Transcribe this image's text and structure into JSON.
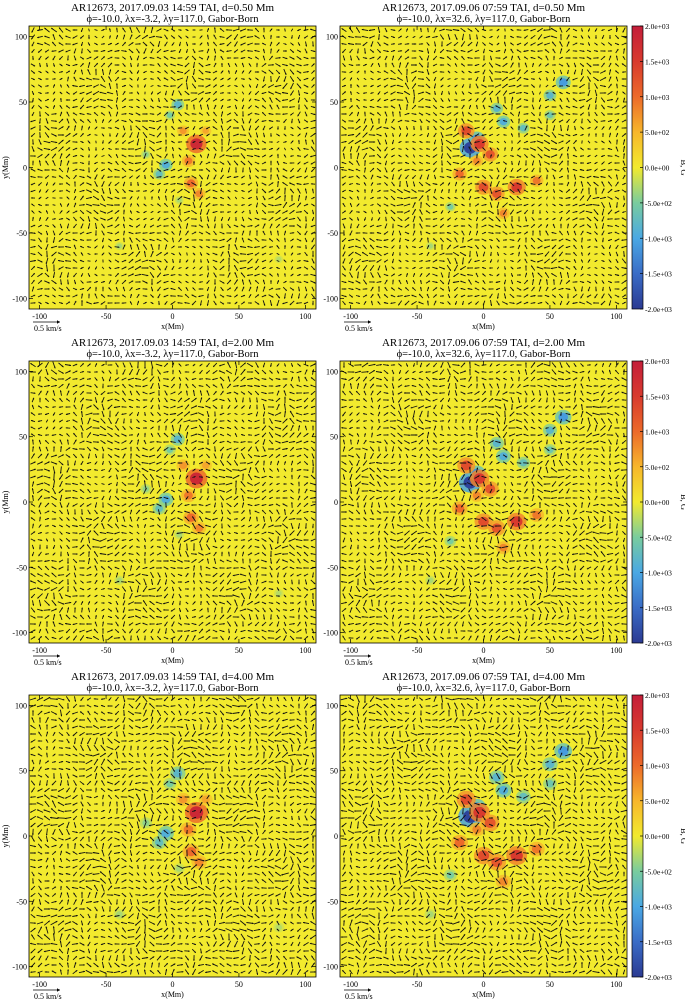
{
  "figure": {
    "columns": [
      {
        "date": "2017.09.03",
        "time": "14:59",
        "lambda_x": "-3.2"
      },
      {
        "date": "2017.09.06",
        "time": "07:59",
        "lambda_x": "32.6"
      }
    ],
    "rows": [
      {
        "depth": "0.50"
      },
      {
        "depth": "2.00"
      },
      {
        "depth": "4.00"
      }
    ]
  },
  "chart_data": [
    {
      "type": "heatmap",
      "title": "AR12673, 2017.09.03 14:59 TAI, d=0.50 Mm",
      "subtitle": "ϕ=-10.0, λx=-3.2, λy=117.0, Gabor-Born",
      "xlabel": "x(Mm)",
      "ylabel": "y(Mm)",
      "xlim": [
        -108,
        108
      ],
      "ylim": [
        -108,
        108
      ],
      "x_ticks": [
        -100,
        -50,
        0,
        50,
        100
      ],
      "y_ticks": [
        -100,
        -50,
        0,
        50,
        100
      ],
      "reference_vector": "0.5 km/s"
    },
    {
      "type": "heatmap",
      "title": "AR12673, 2017.09.06 07:59 TAI, d=0.50 Mm",
      "subtitle": "ϕ=-10.0, λx=32.6, λy=117.0, Gabor-Born",
      "xlabel": "x(Mm)",
      "ylabel": "",
      "xlim": [
        -108,
        108
      ],
      "ylim": [
        -108,
        108
      ],
      "x_ticks": [
        -100,
        -50,
        0,
        50,
        100
      ],
      "y_ticks": [
        -100,
        -50,
        0,
        50,
        100
      ],
      "reference_vector": "0.5 km/s"
    },
    {
      "type": "heatmap",
      "title": "AR12673, 2017.09.03 14:59 TAI, d=2.00 Mm",
      "subtitle": "ϕ=-10.0, λx=-3.2, λy=117.0, Gabor-Born",
      "xlabel": "x(Mm)",
      "ylabel": "y(Mm)",
      "xlim": [
        -108,
        108
      ],
      "ylim": [
        -108,
        108
      ],
      "x_ticks": [
        -100,
        -50,
        0,
        50,
        100
      ],
      "y_ticks": [
        -100,
        -50,
        0,
        50,
        100
      ],
      "reference_vector": "0.5 km/s"
    },
    {
      "type": "heatmap",
      "title": "AR12673, 2017.09.06 07:59 TAI, d=2.00 Mm",
      "subtitle": "ϕ=-10.0, λx=32.6, λy=117.0, Gabor-Born",
      "xlabel": "x(Mm)",
      "ylabel": "",
      "xlim": [
        -108,
        108
      ],
      "ylim": [
        -108,
        108
      ],
      "x_ticks": [
        -100,
        -50,
        0,
        50,
        100
      ],
      "y_ticks": [
        -100,
        -50,
        0,
        50,
        100
      ],
      "reference_vector": "0.5 km/s"
    },
    {
      "type": "heatmap",
      "title": "AR12673, 2017.09.03 14:59 TAI, d=4.00 Mm",
      "subtitle": "ϕ=-10.0, λx=-3.2, λy=117.0, Gabor-Born",
      "xlabel": "x(Mm)",
      "ylabel": "y(Mm)",
      "xlim": [
        -108,
        108
      ],
      "ylim": [
        -108,
        108
      ],
      "x_ticks": [
        -100,
        -50,
        0,
        50,
        100
      ],
      "y_ticks": [
        -100,
        -50,
        0,
        50,
        100
      ],
      "reference_vector": "0.5 km/s"
    },
    {
      "type": "heatmap",
      "title": "AR12673, 2017.09.06 07:59 TAI, d=4.00 Mm",
      "subtitle": "ϕ=-10.0, λx=32.6, λy=117.0, Gabor-Born",
      "xlabel": "x(Mm)",
      "ylabel": "",
      "xlim": [
        -108,
        108
      ],
      "ylim": [
        -108,
        108
      ],
      "x_ticks": [
        -100,
        -50,
        0,
        50,
        100
      ],
      "y_ticks": [
        -100,
        -50,
        0,
        50,
        100
      ],
      "reference_vector": "0.5 km/s"
    }
  ],
  "colorbar": {
    "label": "B, G",
    "ticks": [
      "2.0e+03",
      "1.5e+03",
      "1.0e+03",
      "5.0e+02",
      "0.0e+00",
      "-5.0e+02",
      "-1.0e+03",
      "-1.5e+03",
      "-2.0e+03"
    ],
    "range": [
      -2000,
      2000
    ],
    "colors": {
      "-2000": "#2b3a92",
      "-1500": "#3a6cc6",
      "-1000": "#4aa8e4",
      "-500": "#79cc9e",
      "0": "#f2ea2e",
      "500": "#f7b62c",
      "1000": "#ec6a2a",
      "1500": "#d83a2e",
      "2000": "#c41e3a"
    }
  },
  "flux_features": {
    "2017.09.03": [
      {
        "x": 18,
        "y": 18,
        "B": 1800
      },
      {
        "x": 12,
        "y": 5,
        "B": 900
      },
      {
        "x": 8,
        "y": 28,
        "B": 700
      },
      {
        "x": 25,
        "y": 28,
        "B": 600
      },
      {
        "x": 14,
        "y": -12,
        "B": 1000
      },
      {
        "x": 20,
        "y": -20,
        "B": 800
      },
      {
        "x": -5,
        "y": 2,
        "B": -900
      },
      {
        "x": -10,
        "y": -5,
        "B": -700
      },
      {
        "x": 4,
        "y": 48,
        "B": -800
      },
      {
        "x": -2,
        "y": 40,
        "B": -500
      },
      {
        "x": -20,
        "y": 10,
        "B": -400
      },
      {
        "x": 5,
        "y": -25,
        "B": -300
      },
      {
        "x": -40,
        "y": -60,
        "B": -300
      },
      {
        "x": 80,
        "y": -70,
        "B": -250
      }
    ],
    "2017.09.06": [
      {
        "x": -10,
        "y": 15,
        "B": -1900
      },
      {
        "x": -5,
        "y": 22,
        "B": -1200
      },
      {
        "x": -3,
        "y": 18,
        "B": 1500
      },
      {
        "x": -13,
        "y": 28,
        "B": 1300
      },
      {
        "x": 5,
        "y": 10,
        "B": 1200
      },
      {
        "x": 0,
        "y": -15,
        "B": 1300
      },
      {
        "x": 10,
        "y": -20,
        "B": 1200
      },
      {
        "x": 25,
        "y": -15,
        "B": 1500
      },
      {
        "x": 40,
        "y": -10,
        "B": 900
      },
      {
        "x": 15,
        "y": -35,
        "B": 800
      },
      {
        "x": -18,
        "y": -5,
        "B": 1000
      },
      {
        "x": -5,
        "y": 5,
        "B": 800
      },
      {
        "x": 15,
        "y": 35,
        "B": -900
      },
      {
        "x": 10,
        "y": 45,
        "B": -800
      },
      {
        "x": 30,
        "y": 30,
        "B": -700
      },
      {
        "x": 50,
        "y": 40,
        "B": -600
      },
      {
        "x": 60,
        "y": 65,
        "B": -1100
      },
      {
        "x": 50,
        "y": 55,
        "B": -800
      },
      {
        "x": -25,
        "y": -30,
        "B": -500
      },
      {
        "x": -40,
        "y": -60,
        "B": -300
      }
    ]
  }
}
